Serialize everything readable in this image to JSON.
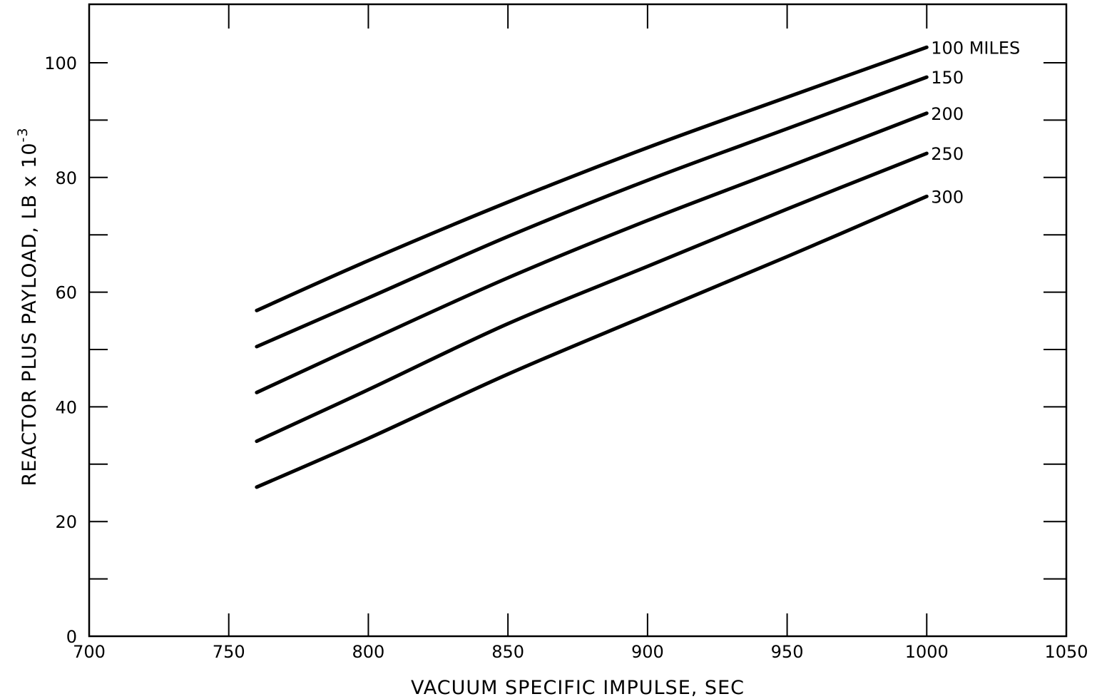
{
  "chart_data": {
    "type": "line",
    "title": "",
    "xlabel": "VACUUM SPECIFIC IMPULSE, SEC",
    "ylabel": "REACTOR PLUS PAYLOAD, LB x 10",
    "ylabel_exponent": "-3",
    "xlim": [
      700,
      1050
    ],
    "ylim": [
      0,
      100
    ],
    "x_ticks": [
      700,
      750,
      800,
      850,
      900,
      950,
      1000,
      1050
    ],
    "x_tick_labels": [
      "700",
      "750",
      "800",
      "850",
      "900",
      "950",
      "1000",
      "1050"
    ],
    "y_ticks": [
      0,
      20,
      40,
      60,
      80,
      100
    ],
    "y_tick_labels": [
      "0",
      "20",
      "40",
      "60",
      "80",
      "100"
    ],
    "grid": false,
    "legend": "inline labels at right end of curves",
    "x": [
      760,
      800,
      850,
      900,
      950,
      1000
    ],
    "series": [
      {
        "name": "100 MILES",
        "values": [
          56.8,
          65.5,
          75.7,
          85.2,
          94.0,
          102.7
        ]
      },
      {
        "name": "150",
        "values": [
          50.5,
          59.0,
          69.7,
          79.5,
          88.5,
          97.5
        ]
      },
      {
        "name": "200",
        "values": [
          42.5,
          51.5,
          62.5,
          72.5,
          81.8,
          91.2
        ]
      },
      {
        "name": "250",
        "values": [
          34.0,
          43.0,
          54.5,
          64.5,
          74.5,
          84.2
        ]
      },
      {
        "name": "300",
        "values": [
          26.0,
          34.5,
          45.7,
          56.0,
          66.2,
          76.7
        ]
      }
    ]
  }
}
